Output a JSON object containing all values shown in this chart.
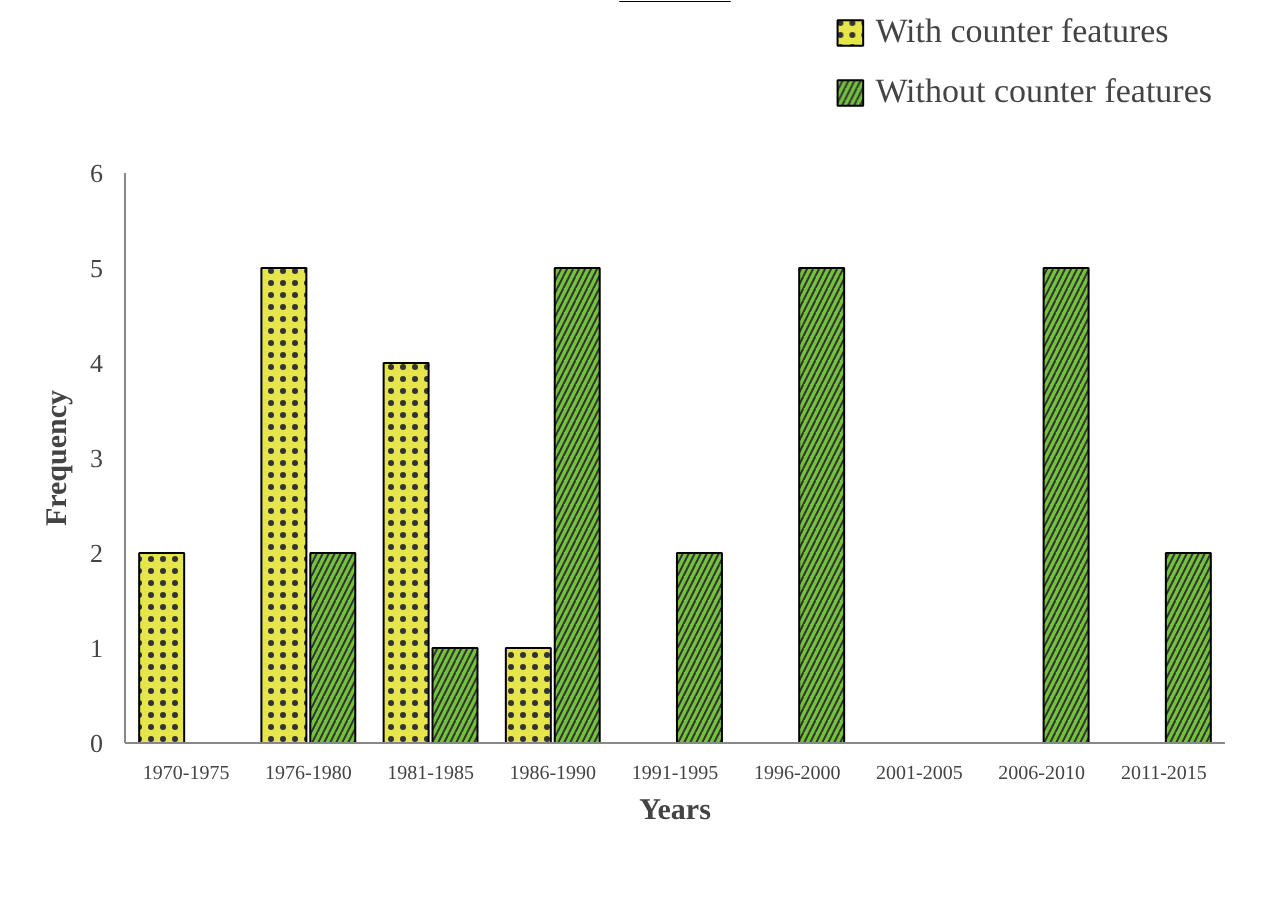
{
  "chart_data": {
    "type": "bar",
    "xlabel": "Years",
    "ylabel": "Frequency",
    "categories": [
      "1970-1975",
      "1976-1980",
      "1981-1985",
      "1986-1990",
      "1991-1995",
      "1996-2000",
      "2001-2005",
      "2006-2010",
      "2011-2015"
    ],
    "series": [
      {
        "name": "With counter features",
        "color": "#e6e64c",
        "values": [
          2,
          5,
          4,
          1,
          0,
          0,
          0,
          0,
          0
        ]
      },
      {
        "name": "Without counter features",
        "color": "#72c23c",
        "values": [
          0,
          2,
          1,
          5,
          2,
          5,
          0,
          5,
          2
        ]
      }
    ],
    "ylim": [
      0,
      6
    ],
    "yticks": [
      0,
      1,
      2,
      3,
      4,
      5,
      6
    ],
    "grid": false,
    "legend": "top right"
  }
}
